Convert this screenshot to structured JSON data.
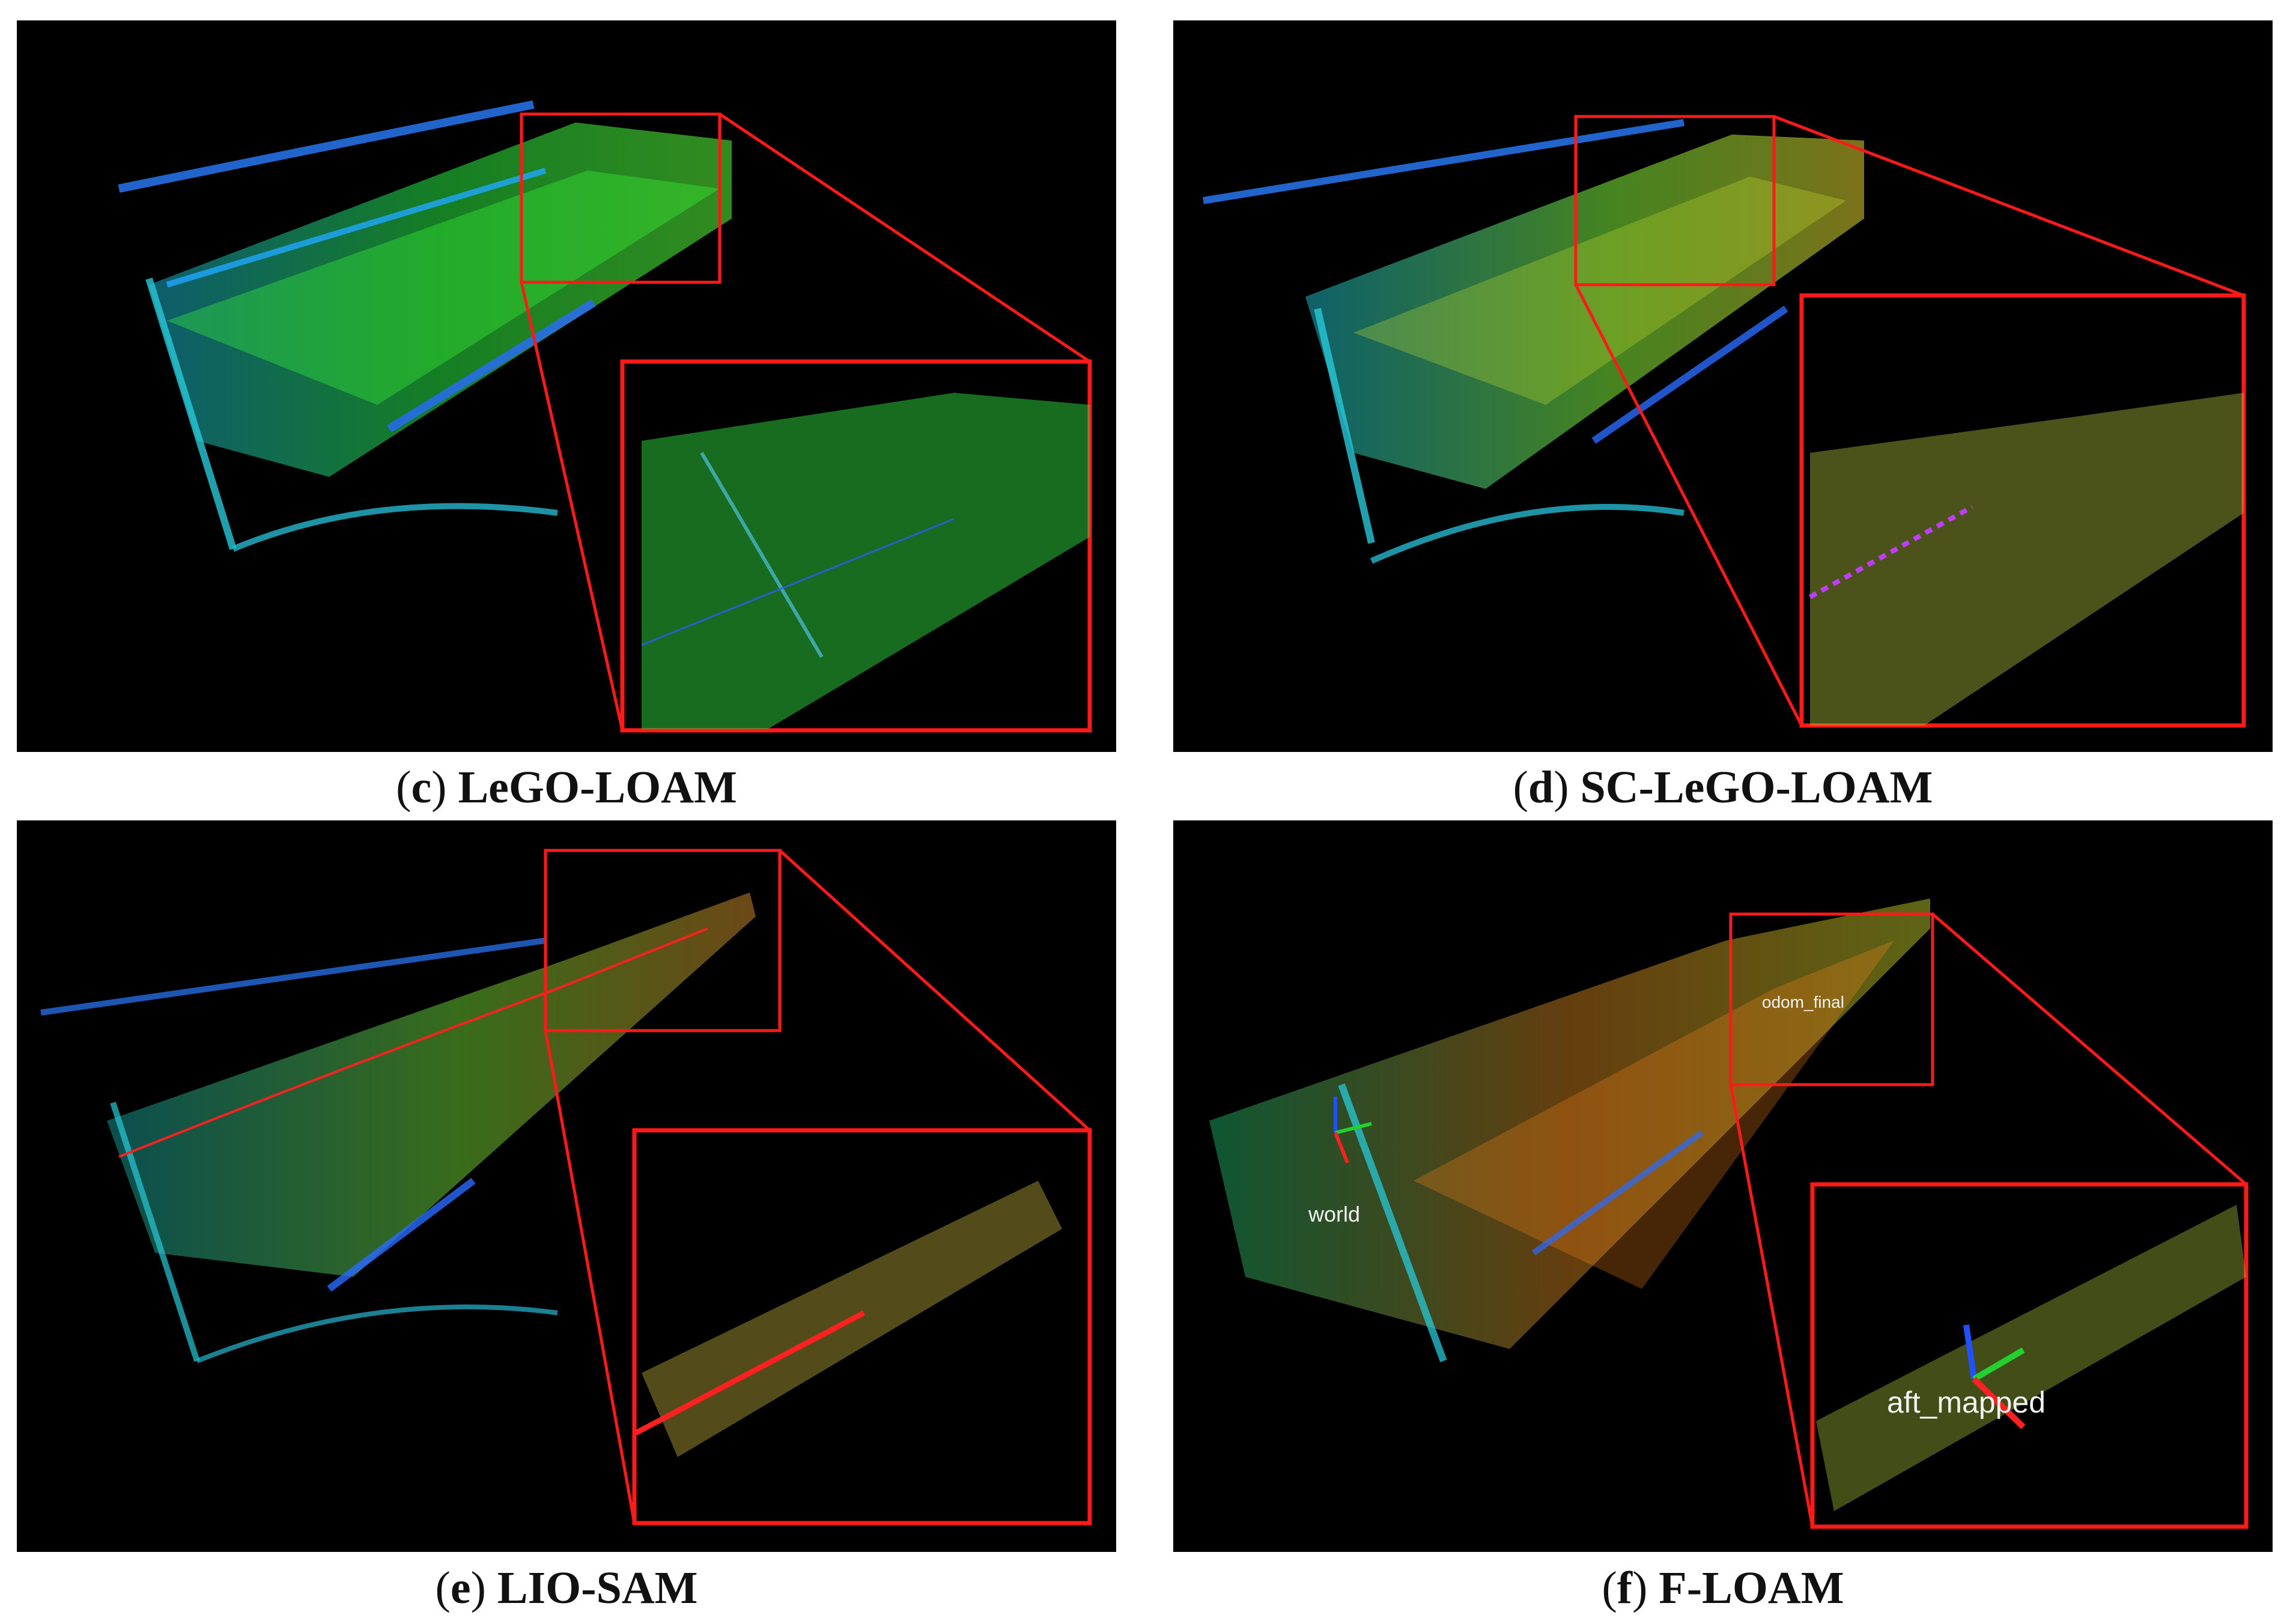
{
  "panels": [
    {
      "letter": "c",
      "method": "LeGO-LOAM",
      "palette": "green"
    },
    {
      "letter": "d",
      "method": "SC-LeGO-LOAM",
      "palette": "yellow-green",
      "trajectory_color": "#c23cff"
    },
    {
      "letter": "e",
      "method": "LIO-SAM",
      "palette": "yellow-green",
      "trajectory_color": "#ff2020"
    },
    {
      "letter": "f",
      "method": "F-LOAM",
      "palette": "orange",
      "frame_labels": {
        "world": "world",
        "odom": "odom_final",
        "aft": "aft_mapped"
      }
    }
  ],
  "colors": {
    "background": "#000000",
    "highlight_box": "#ff1a1a",
    "caption_text": "#111111"
  }
}
